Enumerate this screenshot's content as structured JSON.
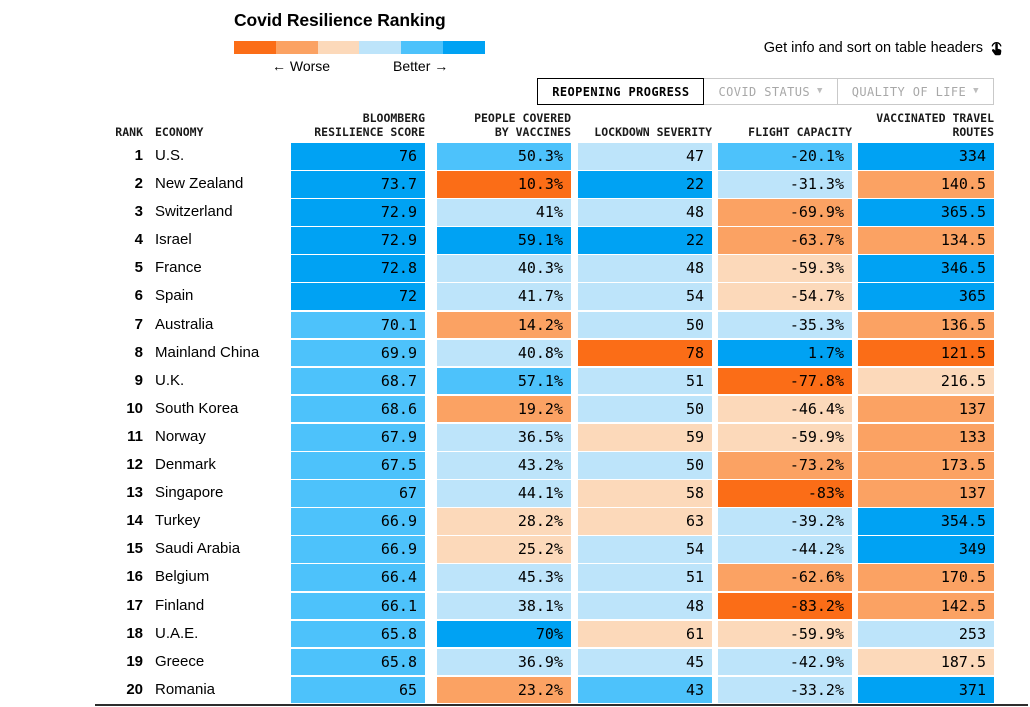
{
  "title": "Covid Resilience Ranking",
  "palette": {
    "o3": "#fb6d17",
    "o2": "#fba263",
    "o1": "#fcd9ba",
    "b1": "#bde4fa",
    "b2": "#4dc2fb",
    "b3": "#00a2f3"
  },
  "legend": {
    "segments": [
      "o3",
      "o2",
      "o1",
      "b1",
      "b2",
      "b3"
    ],
    "worse_label": "← Worse",
    "better_label": "Better →"
  },
  "info_text": "Get info and sort on table headers",
  "tabs": [
    {
      "label": "REOPENING PROGRESS",
      "active": true
    },
    {
      "label": "COVID STATUS",
      "active": false
    },
    {
      "label": "QUALITY OF LIFE",
      "active": false
    }
  ],
  "header": {
    "rank": "RANK",
    "economy": "ECONOMY",
    "score1": "BLOOMBERG",
    "score2": "RESILIENCE SCORE",
    "vacc1": "PEOPLE COVERED",
    "vacc2": "BY VACCINES",
    "lockdown": "LOCKDOWN SEVERITY",
    "flight": "FLIGHT CAPACITY",
    "routes1": "VACCINATED TRAVEL",
    "routes2": "ROUTES"
  },
  "chart_data": {
    "type": "table",
    "title": "Covid Resilience Ranking",
    "color_scale": "diverging heatmap: orange = worse, blue = better (tones o3 worst … b3 best)",
    "columns": [
      "Rank",
      "Economy",
      "Bloomberg Resilience Score",
      "People Covered by Vaccines",
      "Lockdown Severity",
      "Flight Capacity",
      "Vaccinated Travel Routes"
    ],
    "rows": [
      {
        "rank": "1",
        "economy": "U.S.",
        "cells": [
          {
            "v": "76",
            "t": "b3"
          },
          {
            "v": "50.3%",
            "t": "b2"
          },
          {
            "v": "47",
            "t": "b1"
          },
          {
            "v": "-20.1%",
            "t": "b2"
          },
          {
            "v": "334",
            "t": "b3"
          }
        ]
      },
      {
        "rank": "2",
        "economy": "New Zealand",
        "cells": [
          {
            "v": "73.7",
            "t": "b3"
          },
          {
            "v": "10.3%",
            "t": "o3"
          },
          {
            "v": "22",
            "t": "b3"
          },
          {
            "v": "-31.3%",
            "t": "b1"
          },
          {
            "v": "140.5",
            "t": "o2"
          }
        ]
      },
      {
        "rank": "3",
        "economy": "Switzerland",
        "cells": [
          {
            "v": "72.9",
            "t": "b3"
          },
          {
            "v": "41%",
            "t": "b1"
          },
          {
            "v": "48",
            "t": "b1"
          },
          {
            "v": "-69.9%",
            "t": "o2"
          },
          {
            "v": "365.5",
            "t": "b3"
          }
        ]
      },
      {
        "rank": "4",
        "economy": "Israel",
        "cells": [
          {
            "v": "72.9",
            "t": "b3"
          },
          {
            "v": "59.1%",
            "t": "b3"
          },
          {
            "v": "22",
            "t": "b3"
          },
          {
            "v": "-63.7%",
            "t": "o2"
          },
          {
            "v": "134.5",
            "t": "o2"
          }
        ]
      },
      {
        "rank": "5",
        "economy": "France",
        "cells": [
          {
            "v": "72.8",
            "t": "b3"
          },
          {
            "v": "40.3%",
            "t": "b1"
          },
          {
            "v": "48",
            "t": "b1"
          },
          {
            "v": "-59.3%",
            "t": "o1"
          },
          {
            "v": "346.5",
            "t": "b3"
          }
        ]
      },
      {
        "rank": "6",
        "economy": "Spain",
        "cells": [
          {
            "v": "72",
            "t": "b3"
          },
          {
            "v": "41.7%",
            "t": "b1"
          },
          {
            "v": "54",
            "t": "b1"
          },
          {
            "v": "-54.7%",
            "t": "o1"
          },
          {
            "v": "365",
            "t": "b3"
          }
        ]
      },
      {
        "rank": "7",
        "economy": "Australia",
        "cells": [
          {
            "v": "70.1",
            "t": "b2"
          },
          {
            "v": "14.2%",
            "t": "o2"
          },
          {
            "v": "50",
            "t": "b1"
          },
          {
            "v": "-35.3%",
            "t": "b1"
          },
          {
            "v": "136.5",
            "t": "o2"
          }
        ]
      },
      {
        "rank": "8",
        "economy": "Mainland China",
        "cells": [
          {
            "v": "69.9",
            "t": "b2"
          },
          {
            "v": "40.8%",
            "t": "b1"
          },
          {
            "v": "78",
            "t": "o3"
          },
          {
            "v": "1.7%",
            "t": "b3"
          },
          {
            "v": "121.5",
            "t": "o3"
          }
        ]
      },
      {
        "rank": "9",
        "economy": "U.K.",
        "cells": [
          {
            "v": "68.7",
            "t": "b2"
          },
          {
            "v": "57.1%",
            "t": "b2"
          },
          {
            "v": "51",
            "t": "b1"
          },
          {
            "v": "-77.8%",
            "t": "o3"
          },
          {
            "v": "216.5",
            "t": "o1"
          }
        ]
      },
      {
        "rank": "10",
        "economy": "South Korea",
        "cells": [
          {
            "v": "68.6",
            "t": "b2"
          },
          {
            "v": "19.2%",
            "t": "o2"
          },
          {
            "v": "50",
            "t": "b1"
          },
          {
            "v": "-46.4%",
            "t": "o1"
          },
          {
            "v": "137",
            "t": "o2"
          }
        ]
      },
      {
        "rank": "11",
        "economy": "Norway",
        "cells": [
          {
            "v": "67.9",
            "t": "b2"
          },
          {
            "v": "36.5%",
            "t": "b1"
          },
          {
            "v": "59",
            "t": "o1"
          },
          {
            "v": "-59.9%",
            "t": "o1"
          },
          {
            "v": "133",
            "t": "o2"
          }
        ]
      },
      {
        "rank": "12",
        "economy": "Denmark",
        "cells": [
          {
            "v": "67.5",
            "t": "b2"
          },
          {
            "v": "43.2%",
            "t": "b1"
          },
          {
            "v": "50",
            "t": "b1"
          },
          {
            "v": "-73.2%",
            "t": "o2"
          },
          {
            "v": "173.5",
            "t": "o2"
          }
        ]
      },
      {
        "rank": "13",
        "economy": "Singapore",
        "cells": [
          {
            "v": "67",
            "t": "b2"
          },
          {
            "v": "44.1%",
            "t": "b1"
          },
          {
            "v": "58",
            "t": "o1"
          },
          {
            "v": "-83%",
            "t": "o3"
          },
          {
            "v": "137",
            "t": "o2"
          }
        ]
      },
      {
        "rank": "14",
        "economy": "Turkey",
        "cells": [
          {
            "v": "66.9",
            "t": "b2"
          },
          {
            "v": "28.2%",
            "t": "o1"
          },
          {
            "v": "63",
            "t": "o1"
          },
          {
            "v": "-39.2%",
            "t": "b1"
          },
          {
            "v": "354.5",
            "t": "b3"
          }
        ]
      },
      {
        "rank": "15",
        "economy": "Saudi Arabia",
        "cells": [
          {
            "v": "66.9",
            "t": "b2"
          },
          {
            "v": "25.2%",
            "t": "o1"
          },
          {
            "v": "54",
            "t": "b1"
          },
          {
            "v": "-44.2%",
            "t": "b1"
          },
          {
            "v": "349",
            "t": "b3"
          }
        ]
      },
      {
        "rank": "16",
        "economy": "Belgium",
        "cells": [
          {
            "v": "66.4",
            "t": "b2"
          },
          {
            "v": "45.3%",
            "t": "b1"
          },
          {
            "v": "51",
            "t": "b1"
          },
          {
            "v": "-62.6%",
            "t": "o2"
          },
          {
            "v": "170.5",
            "t": "o2"
          }
        ]
      },
      {
        "rank": "17",
        "economy": "Finland",
        "cells": [
          {
            "v": "66.1",
            "t": "b2"
          },
          {
            "v": "38.1%",
            "t": "b1"
          },
          {
            "v": "48",
            "t": "b1"
          },
          {
            "v": "-83.2%",
            "t": "o3"
          },
          {
            "v": "142.5",
            "t": "o2"
          }
        ]
      },
      {
        "rank": "18",
        "economy": "U.A.E.",
        "cells": [
          {
            "v": "65.8",
            "t": "b2"
          },
          {
            "v": "70%",
            "t": "b3"
          },
          {
            "v": "61",
            "t": "o1"
          },
          {
            "v": "-59.9%",
            "t": "o1"
          },
          {
            "v": "253",
            "t": "b1"
          }
        ]
      },
      {
        "rank": "19",
        "economy": "Greece",
        "cells": [
          {
            "v": "65.8",
            "t": "b2"
          },
          {
            "v": "36.9%",
            "t": "b1"
          },
          {
            "v": "45",
            "t": "b1"
          },
          {
            "v": "-42.9%",
            "t": "b1"
          },
          {
            "v": "187.5",
            "t": "o1"
          }
        ]
      },
      {
        "rank": "20",
        "economy": "Romania",
        "cells": [
          {
            "v": "65",
            "t": "b2"
          },
          {
            "v": "23.2%",
            "t": "o2"
          },
          {
            "v": "43",
            "t": "b2"
          },
          {
            "v": "-33.2%",
            "t": "b1"
          },
          {
            "v": "371",
            "t": "b3"
          }
        ]
      }
    ]
  }
}
